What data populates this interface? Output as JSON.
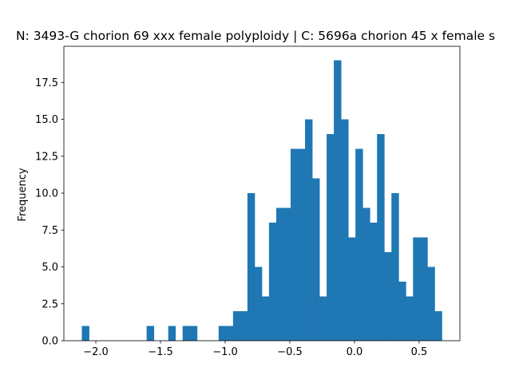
{
  "chart_data": {
    "type": "bar",
    "title": "N: 3493-G chorion 69 xxx female polyploidy | C: 5696a chorion 45 x female s",
    "xlabel": "",
    "ylabel": "Frequency",
    "xlim": [
      -2.247,
      0.815
    ],
    "ylim": [
      0,
      19.95
    ],
    "grid": false,
    "legend": "none",
    "bar_color": "#1f77b4",
    "x_ticks": [
      {
        "value": -2.0,
        "label": "−2.0"
      },
      {
        "value": -1.5,
        "label": "−1.5"
      },
      {
        "value": -1.0,
        "label": "−1.0"
      },
      {
        "value": -0.5,
        "label": "−0.5"
      },
      {
        "value": 0.0,
        "label": "0.0"
      },
      {
        "value": 0.5,
        "label": "0.5"
      }
    ],
    "y_ticks": [
      {
        "value": 0.0,
        "label": "0.0"
      },
      {
        "value": 2.5,
        "label": "2.5"
      },
      {
        "value": 5.0,
        "label": "5.0"
      },
      {
        "value": 7.5,
        "label": "7.5"
      },
      {
        "value": 10.0,
        "label": "10.0"
      },
      {
        "value": 12.5,
        "label": "12.5"
      },
      {
        "value": 15.0,
        "label": "15.0"
      },
      {
        "value": 17.5,
        "label": "17.5"
      }
    ],
    "bins": {
      "start": -2.1082,
      "width": 0.05567
    },
    "values": [
      1,
      0,
      0,
      0,
      0,
      0,
      0,
      0,
      0,
      1,
      0,
      0,
      1,
      0,
      1,
      1,
      0,
      0,
      0,
      1,
      1,
      2,
      2,
      10,
      5,
      3,
      8,
      9,
      9,
      13,
      13,
      15,
      11,
      3,
      14,
      19,
      15,
      7,
      13,
      9,
      8,
      14,
      6,
      10,
      4,
      3,
      7,
      7,
      5,
      2
    ]
  }
}
